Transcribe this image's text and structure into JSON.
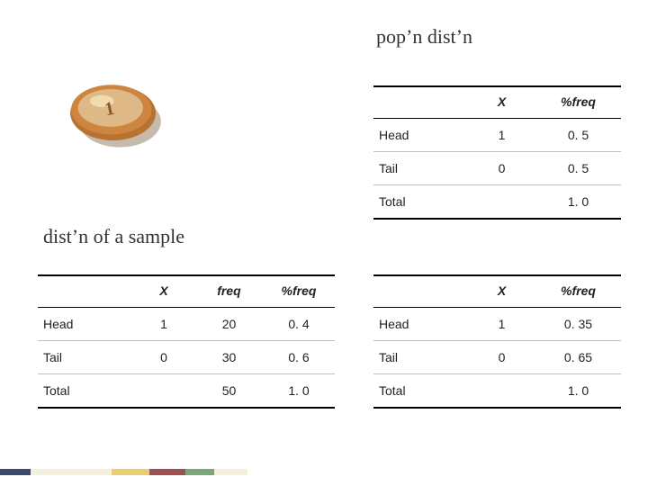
{
  "headings": {
    "popn": "pop’n dist’n",
    "sample": "dist’n of a sample"
  },
  "columns": {
    "blank": "",
    "x": "X",
    "freq": "freq",
    "pctfreq": "%freq"
  },
  "labels": {
    "head": "Head",
    "tail": "Tail",
    "total": "Total"
  },
  "pop_table": {
    "head": {
      "x": "1",
      "pct": "0. 5"
    },
    "tail": {
      "x": "0",
      "pct": "0. 5"
    },
    "total": {
      "pct": "1. 0"
    }
  },
  "sample_table": {
    "head": {
      "x": "1",
      "freq": "20",
      "pct": "0. 4"
    },
    "tail": {
      "x": "0",
      "freq": "30",
      "pct": "0. 6"
    },
    "total": {
      "freq": "50",
      "pct": "1. 0"
    }
  },
  "right_table": {
    "head": {
      "x": "1",
      "pct": "0. 35"
    },
    "tail": {
      "x": "0",
      "pct": "0. 65"
    },
    "total": {
      "pct": "1. 0"
    }
  },
  "coin": {
    "fill_outer": "#b87333",
    "fill_mid": "#cd853f",
    "fill_inner": "#deb887",
    "highlight": "#f4e4bc",
    "shadow": "#5a3810"
  },
  "footer_colors": [
    "#3b4a6b",
    "#f5f0dc",
    "#e8d070",
    "#a05050",
    "#7aa67a",
    "#f5f0dc"
  ],
  "footer_widths": [
    34,
    90,
    42,
    40,
    32,
    37
  ]
}
